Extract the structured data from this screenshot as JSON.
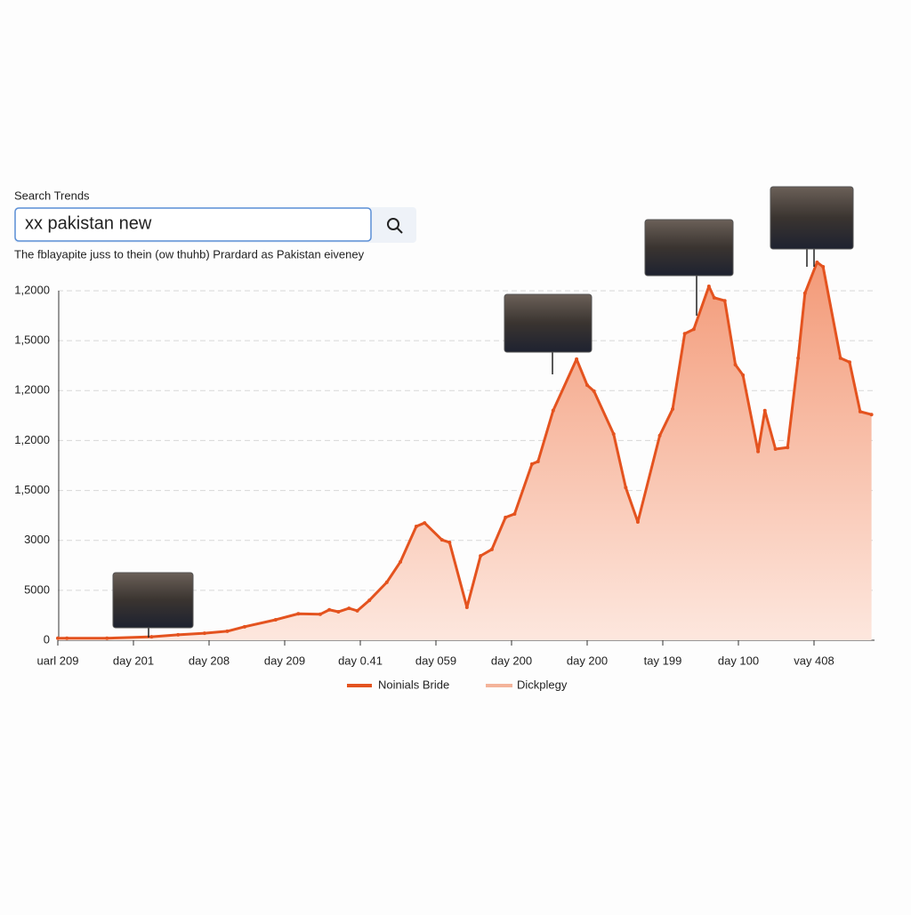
{
  "header": {
    "label": "Search Trends",
    "query": "xx pakistan new"
  },
  "chart_data": {
    "type": "area",
    "subtitle": "The fblayapite juss to thein (ow thuhb) Prardard as Pakistan eiveney",
    "x": [
      0,
      0.12,
      0.65,
      1.24,
      1.59,
      1.94,
      2.24,
      2.47,
      2.88,
      3.18,
      3.47,
      3.59,
      3.71,
      3.85,
      3.96,
      4.12,
      4.35,
      4.53,
      4.74,
      4.85,
      5.08,
      5.18,
      5.41,
      5.59,
      5.74,
      5.92,
      6.04,
      6.27,
      6.35,
      6.55,
      6.86,
      7.0,
      7.09,
      7.35,
      7.51,
      7.67,
      7.96,
      8.13,
      8.29,
      8.41,
      8.61,
      8.68,
      8.82,
      8.96,
      9.06,
      9.26,
      9.35,
      9.49,
      9.65,
      9.79,
      9.88,
      10.04,
      10.12,
      10.35,
      10.47,
      10.61,
      10.76
    ],
    "series": [
      {
        "name": "Noinials Bride",
        "color": "#e4531f",
        "values": [
          40,
          40,
          40,
          70,
          110,
          140,
          180,
          270,
          410,
          530,
          520,
          610,
          570,
          640,
          590,
          800,
          1160,
          1570,
          2280,
          2350,
          2010,
          1960,
          660,
          1690,
          1820,
          2460,
          2530,
          3530,
          3580,
          4600,
          5630,
          5110,
          4990,
          4130,
          3060,
          2370,
          4100,
          4630,
          6140,
          6230,
          7090,
          6860,
          6800,
          5520,
          5310,
          3780,
          4600,
          3830,
          3860,
          5650,
          6950,
          7570,
          7480,
          5650,
          5570,
          4580,
          4520
        ]
      }
    ],
    "fill_legend": {
      "name": "Dickplegy",
      "color": "#f4b49a"
    },
    "xlim": [
      0,
      10.8
    ],
    "xticks": [
      {
        "value": 0,
        "label": "uarl 209"
      },
      {
        "value": 1,
        "label": "day 201"
      },
      {
        "value": 2,
        "label": "day 208"
      },
      {
        "value": 3,
        "label": "day 209"
      },
      {
        "value": 4,
        "label": "day 0.41"
      },
      {
        "value": 5,
        "label": "day 059"
      },
      {
        "value": 6,
        "label": "day 200"
      },
      {
        "value": 7,
        "label": "day 200"
      },
      {
        "value": 8,
        "label": "tay 199"
      },
      {
        "value": 9,
        "label": "day 100"
      },
      {
        "value": 10,
        "label": "vay 408"
      }
    ],
    "ylim": [
      0,
      7600
    ],
    "yticks": [
      0,
      {
        "value": 1000,
        "label": "5000"
      },
      {
        "value": 2000,
        "label": "3000"
      },
      {
        "value": 3000,
        "label": "1,5000"
      },
      {
        "value": 4000,
        "label": "1,2000"
      },
      {
        "value": 5000,
        "label": "1,2000"
      },
      {
        "value": 6000,
        "label": "1,5000"
      },
      {
        "value": 7000,
        "label": "1,2000"
      }
    ],
    "grid": true
  }
}
